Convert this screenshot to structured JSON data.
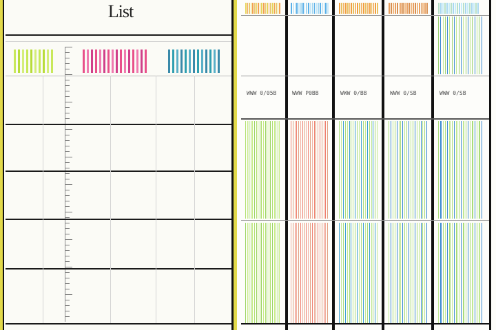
{
  "left_panel": {
    "title": "List",
    "swatch_colors": {
      "green": [
        "#c8e85a",
        "#b8dc3a",
        "#d4ee7a"
      ],
      "pink": [
        "#e8508a",
        "#f07ab0",
        "#d0408a"
      ],
      "teal": [
        "#3a8aaa",
        "#2f9fb0",
        "#5ab0c8"
      ]
    },
    "row_count": 5
  },
  "right_panel": {
    "column_codes": [
      "WWW 0/05B",
      "WWW P0BB",
      "WWW 0/BB",
      "WWW 0/SB",
      "WWW 0/SB"
    ],
    "columns": [
      {
        "top_colors": [
          "#e7d45a",
          "#f2a050",
          "#e8c870"
        ],
        "mid_colors": [
          "#3a8ad0",
          "#9ad070",
          "#b8e08a"
        ],
        "low_colors": [
          "#b0e070",
          "#c8ec86",
          "#9ad462"
        ]
      },
      {
        "top_colors": [
          "#5ab0e8",
          "#c8e8f8",
          "#a8d8f0"
        ],
        "mid_colors": [
          "#e87060",
          "#b8d8a0",
          "#a0c8e0"
        ],
        "low_colors": [
          "#f08070",
          "#e0a080",
          "#f0b0a0"
        ]
      },
      {
        "top_colors": [
          "#f0a040",
          "#e8c060",
          "#f2b870"
        ],
        "mid_colors": [
          "#9ad070",
          "#b8e08a",
          "#3a8ad0"
        ],
        "low_colors": [
          "#a8dc7a",
          "#c0e894",
          "#3aa0d0"
        ]
      },
      {
        "top_colors": [
          "#e8a060",
          "#d89050",
          "#f0b880"
        ],
        "mid_colors": [
          "#9ad070",
          "#c8e8a0",
          "#3a8ad0"
        ],
        "low_colors": [
          "#a8dc7a",
          "#3a8ad0",
          "#c0e894"
        ]
      },
      {
        "top_colors": [
          "#b8e0c8",
          "#a8d8f0",
          "#c8ecf8"
        ],
        "mid_colors": [
          "#9ad070",
          "#3a8ad0",
          "#c0e894"
        ],
        "low_colors": [
          "#a8dc7a",
          "#3a8ad0",
          "#c0e894"
        ]
      }
    ]
  }
}
